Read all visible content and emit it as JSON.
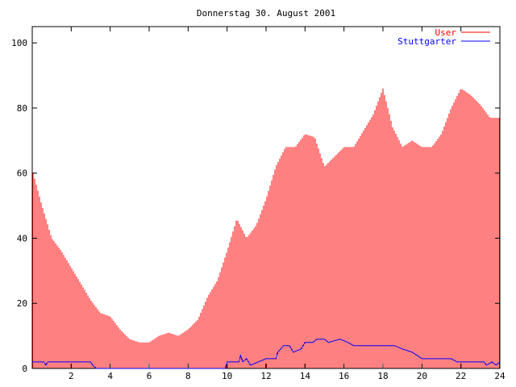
{
  "chart_data": {
    "type": "bar",
    "title": "Donnerstag 30. August 2001",
    "xlabel": "",
    "ylabel": "",
    "xlim": [
      0,
      24
    ],
    "ylim": [
      0,
      105
    ],
    "xticks": [
      2,
      4,
      6,
      8,
      10,
      12,
      14,
      16,
      18,
      20,
      22,
      24
    ],
    "yticks": [
      0,
      20,
      40,
      60,
      80,
      100
    ],
    "xtick_labels": [
      "2",
      "4",
      "6",
      "8",
      "10",
      "12",
      "14",
      "16",
      "18",
      "20",
      "22",
      "24"
    ],
    "ytick_labels": [
      "0",
      "20",
      "40",
      "60",
      "80",
      "100"
    ],
    "grid": false,
    "legend_position": "top-right",
    "colors": {
      "user": "#ff0000",
      "stuttgarter": "#0000ff",
      "axis": "#000000"
    },
    "legend": [
      "User",
      "Stuttgarter"
    ],
    "series": [
      {
        "name": "User",
        "style": "impulses",
        "points": [
          [
            0,
            61
          ],
          [
            0.5,
            50
          ],
          [
            1,
            40
          ],
          [
            1.5,
            36
          ],
          [
            2,
            31
          ],
          [
            2.5,
            26
          ],
          [
            3,
            21
          ],
          [
            3.5,
            17
          ],
          [
            4,
            16
          ],
          [
            4.5,
            12
          ],
          [
            5,
            9
          ],
          [
            5.5,
            8
          ],
          [
            6,
            8
          ],
          [
            6.5,
            10
          ],
          [
            7,
            11
          ],
          [
            7.5,
            10
          ],
          [
            8,
            12
          ],
          [
            8.5,
            15
          ],
          [
            9,
            22
          ],
          [
            9.5,
            27
          ],
          [
            10,
            36
          ],
          [
            10.5,
            46
          ],
          [
            11,
            40
          ],
          [
            11.5,
            44
          ],
          [
            12,
            52
          ],
          [
            12.5,
            62
          ],
          [
            13,
            68
          ],
          [
            13.5,
            68
          ],
          [
            14,
            72
          ],
          [
            14.5,
            71
          ],
          [
            15,
            62
          ],
          [
            15.5,
            65
          ],
          [
            16,
            68
          ],
          [
            16.5,
            68
          ],
          [
            17,
            73
          ],
          [
            17.5,
            78
          ],
          [
            18,
            86
          ],
          [
            18.5,
            74
          ],
          [
            19,
            68
          ],
          [
            19.5,
            70
          ],
          [
            20,
            68
          ],
          [
            20.5,
            68
          ],
          [
            21,
            72
          ],
          [
            21.5,
            80
          ],
          [
            22,
            86
          ],
          [
            22.5,
            84
          ],
          [
            23,
            81
          ],
          [
            23.5,
            77
          ],
          [
            24,
            77
          ]
        ]
      },
      {
        "name": "Stuttgarter",
        "style": "lines",
        "points": [
          [
            0,
            2
          ],
          [
            0.6,
            2
          ],
          [
            0.7,
            1
          ],
          [
            0.8,
            2
          ],
          [
            3.0,
            2
          ],
          [
            3.1,
            1
          ],
          [
            3.3,
            0
          ],
          [
            9.9,
            0
          ],
          [
            10.0,
            2
          ],
          [
            10.6,
            2
          ],
          [
            10.7,
            4
          ],
          [
            10.8,
            2
          ],
          [
            11.0,
            3
          ],
          [
            11.2,
            1
          ],
          [
            11.6,
            2
          ],
          [
            12.0,
            3
          ],
          [
            12.5,
            3
          ],
          [
            12.6,
            5
          ],
          [
            12.9,
            7
          ],
          [
            13.2,
            7
          ],
          [
            13.4,
            5
          ],
          [
            13.8,
            6
          ],
          [
            14.0,
            8
          ],
          [
            14.4,
            8
          ],
          [
            14.6,
            9
          ],
          [
            15.0,
            9
          ],
          [
            15.2,
            8
          ],
          [
            15.8,
            9
          ],
          [
            16.2,
            8
          ],
          [
            16.5,
            7
          ],
          [
            18.6,
            7
          ],
          [
            19.0,
            6
          ],
          [
            19.5,
            5
          ],
          [
            20.0,
            3
          ],
          [
            21.5,
            3
          ],
          [
            21.8,
            2
          ],
          [
            23.2,
            2
          ],
          [
            23.3,
            1
          ],
          [
            23.6,
            2
          ],
          [
            23.8,
            1
          ],
          [
            24,
            2
          ]
        ]
      }
    ]
  }
}
